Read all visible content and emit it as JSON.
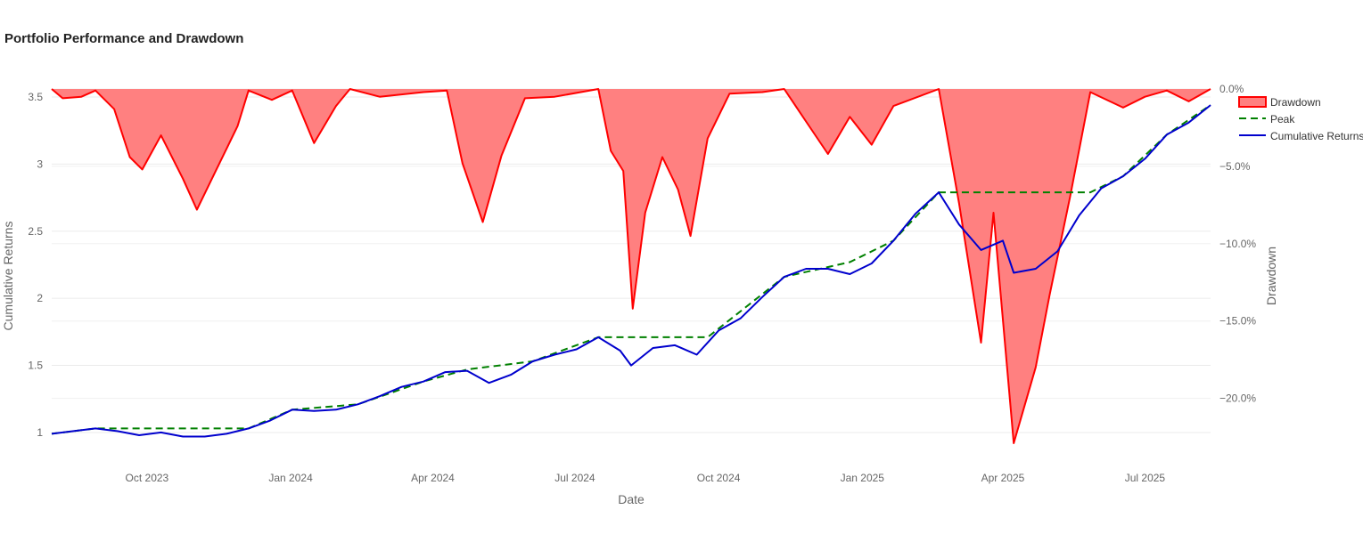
{
  "chart_data": {
    "type": "line",
    "title": "Portfolio Performance and Drawdown",
    "xlabel": "Date",
    "ylabel": "Cumulative Returns",
    "y2label": "Drawdown",
    "x_ticks": [
      "Oct 2023",
      "Jan 2024",
      "Apr 2024",
      "Jul 2024",
      "Oct 2024",
      "Jan 2025",
      "Apr 2025",
      "Jul 2025"
    ],
    "y_ticks": [
      "1",
      "1.5",
      "2",
      "2.5",
      "3",
      "3.5"
    ],
    "y2_ticks": [
      "0.0%",
      "−5.0%",
      "−10.0%",
      "−15.0%",
      "−20.0%"
    ],
    "ylim": [
      0.92,
      3.56
    ],
    "y2lim": [
      -22.9,
      0
    ],
    "xlim": [
      "2023-08-01",
      "2025-08-12"
    ],
    "grid": true,
    "legend_position": "top-right",
    "colors": {
      "drawdown": "#ff0000",
      "drawdown_fill": "#ff8080",
      "peak": "#008000",
      "cumulative": "#0000cd"
    },
    "series": [
      {
        "name": "Cumulative Returns",
        "axis": "left",
        "points": [
          [
            "2023-08-01",
            0.99
          ],
          [
            "2023-08-15",
            1.01
          ],
          [
            "2023-08-29",
            1.03
          ],
          [
            "2023-09-12",
            1.01
          ],
          [
            "2023-09-26",
            0.98
          ],
          [
            "2023-10-10",
            1.0
          ],
          [
            "2023-10-24",
            0.97
          ],
          [
            "2023-11-07",
            0.97
          ],
          [
            "2023-11-21",
            0.99
          ],
          [
            "2023-12-05",
            1.03
          ],
          [
            "2023-12-19",
            1.09
          ],
          [
            "2024-01-02",
            1.17
          ],
          [
            "2024-01-16",
            1.16
          ],
          [
            "2024-01-30",
            1.17
          ],
          [
            "2024-02-13",
            1.21
          ],
          [
            "2024-02-27",
            1.27
          ],
          [
            "2024-03-12",
            1.34
          ],
          [
            "2024-03-26",
            1.38
          ],
          [
            "2024-04-09",
            1.45
          ],
          [
            "2024-04-23",
            1.46
          ],
          [
            "2024-05-07",
            1.37
          ],
          [
            "2024-05-21",
            1.43
          ],
          [
            "2024-06-04",
            1.53
          ],
          [
            "2024-06-18",
            1.58
          ],
          [
            "2024-07-02",
            1.62
          ],
          [
            "2024-07-16",
            1.71
          ],
          [
            "2024-07-30",
            1.61
          ],
          [
            "2024-08-06",
            1.5
          ],
          [
            "2024-08-20",
            1.63
          ],
          [
            "2024-09-03",
            1.65
          ],
          [
            "2024-09-17",
            1.58
          ],
          [
            "2024-10-01",
            1.76
          ],
          [
            "2024-10-15",
            1.85
          ],
          [
            "2024-10-29",
            2.01
          ],
          [
            "2024-11-12",
            2.16
          ],
          [
            "2024-11-26",
            2.22
          ],
          [
            "2024-12-10",
            2.22
          ],
          [
            "2024-12-24",
            2.18
          ],
          [
            "2025-01-07",
            2.26
          ],
          [
            "2025-01-21",
            2.43
          ],
          [
            "2025-02-04",
            2.63
          ],
          [
            "2025-02-19",
            2.79
          ],
          [
            "2025-03-04",
            2.55
          ],
          [
            "2025-03-18",
            2.36
          ],
          [
            "2025-04-01",
            2.43
          ],
          [
            "2025-04-08",
            2.19
          ],
          [
            "2025-04-22",
            2.22
          ],
          [
            "2025-05-06",
            2.35
          ],
          [
            "2025-05-20",
            2.62
          ],
          [
            "2025-06-03",
            2.82
          ],
          [
            "2025-06-17",
            2.91
          ],
          [
            "2025-07-01",
            3.04
          ],
          [
            "2025-07-15",
            3.22
          ],
          [
            "2025-07-29",
            3.31
          ],
          [
            "2025-08-12",
            3.44
          ]
        ]
      },
      {
        "name": "Peak",
        "axis": "left",
        "style": "dashed",
        "points": [
          [
            "2023-08-01",
            0.99
          ],
          [
            "2023-08-29",
            1.03
          ],
          [
            "2023-12-05",
            1.03
          ],
          [
            "2024-01-02",
            1.17
          ],
          [
            "2024-02-13",
            1.21
          ],
          [
            "2024-03-26",
            1.38
          ],
          [
            "2024-04-23",
            1.47
          ],
          [
            "2024-06-04",
            1.53
          ],
          [
            "2024-07-16",
            1.71
          ],
          [
            "2024-09-24",
            1.71
          ],
          [
            "2024-11-12",
            2.16
          ],
          [
            "2024-12-24",
            2.27
          ],
          [
            "2025-01-21",
            2.43
          ],
          [
            "2025-02-19",
            2.79
          ],
          [
            "2025-05-27",
            2.79
          ],
          [
            "2025-06-17",
            2.91
          ],
          [
            "2025-07-15",
            3.22
          ],
          [
            "2025-08-12",
            3.44
          ]
        ]
      },
      {
        "name": "Drawdown",
        "axis": "right",
        "style": "filled",
        "points": [
          [
            "2023-08-01",
            0
          ],
          [
            "2023-08-08",
            -0.6
          ],
          [
            "2023-08-20",
            -0.5
          ],
          [
            "2023-08-29",
            -0.1
          ],
          [
            "2023-09-10",
            -1.3
          ],
          [
            "2023-09-20",
            -4.4
          ],
          [
            "2023-09-28",
            -5.2
          ],
          [
            "2023-10-10",
            -3.0
          ],
          [
            "2023-10-24",
            -5.8
          ],
          [
            "2023-11-02",
            -7.8
          ],
          [
            "2023-11-14",
            -5.3
          ],
          [
            "2023-11-28",
            -2.4
          ],
          [
            "2023-12-05",
            -0.1
          ],
          [
            "2023-12-20",
            -0.7
          ],
          [
            "2024-01-02",
            -0.1
          ],
          [
            "2024-01-16",
            -3.5
          ],
          [
            "2024-01-30",
            -1.1
          ],
          [
            "2024-02-08",
            0
          ],
          [
            "2024-02-27",
            -0.5
          ],
          [
            "2024-03-26",
            -0.2
          ],
          [
            "2024-04-10",
            -0.1
          ],
          [
            "2024-04-20",
            -4.8
          ],
          [
            "2024-05-03",
            -8.6
          ],
          [
            "2024-05-15",
            -4.3
          ],
          [
            "2024-05-30",
            -0.6
          ],
          [
            "2024-06-18",
            -0.5
          ],
          [
            "2024-07-16",
            0
          ],
          [
            "2024-07-24",
            -4.0
          ],
          [
            "2024-08-01",
            -5.3
          ],
          [
            "2024-08-07",
            -14.2
          ],
          [
            "2024-08-15",
            -8.0
          ],
          [
            "2024-08-26",
            -4.4
          ],
          [
            "2024-09-05",
            -6.5
          ],
          [
            "2024-09-13",
            -9.5
          ],
          [
            "2024-09-24",
            -3.2
          ],
          [
            "2024-10-08",
            -0.3
          ],
          [
            "2024-10-29",
            -0.2
          ],
          [
            "2024-11-12",
            0
          ],
          [
            "2024-11-26",
            -2.1
          ],
          [
            "2024-12-10",
            -4.2
          ],
          [
            "2024-12-24",
            -1.8
          ],
          [
            "2025-01-07",
            -3.6
          ],
          [
            "2025-01-21",
            -1.1
          ],
          [
            "2025-02-19",
            0
          ],
          [
            "2025-03-04",
            -7.4
          ],
          [
            "2025-03-18",
            -16.4
          ],
          [
            "2025-03-26",
            -8.0
          ],
          [
            "2025-04-08",
            -22.9
          ],
          [
            "2025-04-22",
            -18.0
          ],
          [
            "2025-05-01",
            -13.3
          ],
          [
            "2025-05-14",
            -7.0
          ],
          [
            "2025-05-27",
            -0.2
          ],
          [
            "2025-06-17",
            -1.2
          ],
          [
            "2025-07-01",
            -0.5
          ],
          [
            "2025-07-15",
            -0.1
          ],
          [
            "2025-07-29",
            -0.8
          ],
          [
            "2025-08-12",
            0
          ]
        ]
      }
    ],
    "legend": [
      "Drawdown",
      "Peak",
      "Cumulative Returns"
    ]
  }
}
